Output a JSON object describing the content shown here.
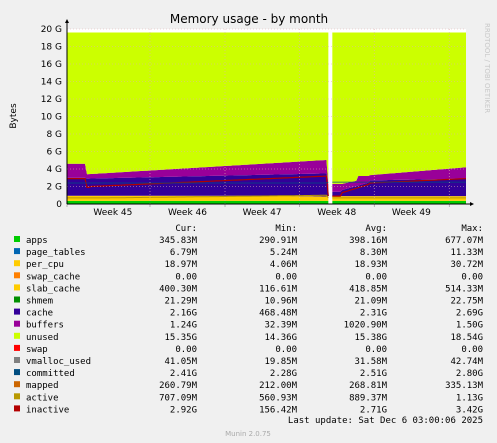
{
  "chart_data": {
    "type": "area",
    "title": "Memory usage - by month",
    "ylabel": "Bytes",
    "watermark": "RRDTOOL / TOBI OETIKER",
    "yticks": [
      "0",
      "2 G",
      "4 G",
      "6 G",
      "8 G",
      "10 G",
      "12 G",
      "14 G",
      "16 G",
      "18 G",
      "20 G"
    ],
    "ylim": [
      0,
      20
    ],
    "xticks": [
      "Week 45",
      "Week 46",
      "Week 47",
      "Week 48",
      "Week 49"
    ],
    "grid": true,
    "columns": [
      "Cur:",
      "Min:",
      "Avg:",
      "Max:"
    ],
    "series": [
      {
        "name": "apps",
        "color": "#00cc00",
        "cur": "345.83M",
        "min": "290.91M",
        "avg": "398.16M",
        "max": "677.07M"
      },
      {
        "name": "page_tables",
        "color": "#0066b3",
        "cur": "6.79M",
        "min": "5.24M",
        "avg": "8.30M",
        "max": "11.33M"
      },
      {
        "name": "per_cpu",
        "color": "#ffcc00",
        "cur": "18.97M",
        "min": "4.06M",
        "avg": "18.93M",
        "max": "30.72M"
      },
      {
        "name": "swap_cache",
        "color": "#ff8000",
        "cur": "0.00",
        "min": "0.00",
        "avg": "0.00",
        "max": "0.00"
      },
      {
        "name": "slab_cache",
        "color": "#ffcc00",
        "cur": "400.30M",
        "min": "116.61M",
        "avg": "418.85M",
        "max": "514.33M"
      },
      {
        "name": "shmem",
        "color": "#008f00",
        "cur": "21.29M",
        "min": "10.96M",
        "avg": "21.09M",
        "max": "22.75M"
      },
      {
        "name": "cache",
        "color": "#330099",
        "cur": "2.16G",
        "min": "468.48M",
        "avg": "2.31G",
        "max": "2.69G"
      },
      {
        "name": "buffers",
        "color": "#990099",
        "cur": "1.24G",
        "min": "32.39M",
        "avg": "1020.90M",
        "max": "1.50G"
      },
      {
        "name": "unused",
        "color": "#ccff00",
        "cur": "15.35G",
        "min": "14.36G",
        "avg": "15.38G",
        "max": "18.54G"
      },
      {
        "name": "swap",
        "color": "#ff0000",
        "cur": "0.00",
        "min": "0.00",
        "avg": "0.00",
        "max": "0.00"
      },
      {
        "name": "vmalloc_used",
        "color": "#808080",
        "cur": "41.05M",
        "min": "19.85M",
        "avg": "31.58M",
        "max": "42.74M"
      },
      {
        "name": "committed",
        "color": "#004d80",
        "cur": "2.41G",
        "min": "2.28G",
        "avg": "2.51G",
        "max": "2.80G"
      },
      {
        "name": "mapped",
        "color": "#cc6600",
        "cur": "260.79M",
        "min": "212.00M",
        "avg": "268.81M",
        "max": "335.13M"
      },
      {
        "name": "active",
        "color": "#b89900",
        "cur": "707.09M",
        "min": "560.93M",
        "avg": "889.37M",
        "max": "1.13G"
      },
      {
        "name": "inactive",
        "color": "#b30000",
        "cur": "2.92G",
        "min": "156.42M",
        "avg": "2.71G",
        "max": "3.42G"
      }
    ],
    "last_update": "Last update: Sat Dec  6 03:00:06 2025",
    "footer": "Munin 2.0.75"
  }
}
